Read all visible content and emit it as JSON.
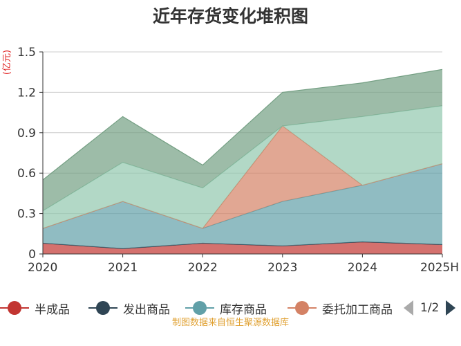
{
  "title": "近年存货变化堆积图",
  "ylabel": "(亿元)",
  "source": "制图数据来自恒生聚源数据库",
  "legend_page": "1/2",
  "chart_data": {
    "type": "area",
    "stacked": true,
    "categories": [
      "2020",
      "2021",
      "2022",
      "2023",
      "2024",
      "2025H"
    ],
    "ylim": [
      0,
      1.5
    ],
    "yticks": [
      "0",
      "0.3",
      "0.6",
      "0.9",
      "1.2",
      "1.5"
    ],
    "grid": true,
    "legend_position": "bottom",
    "series": [
      {
        "name": "半成品",
        "color": "#c23531",
        "values": [
          0.08,
          0.04,
          0.08,
          0.06,
          0.09,
          0.07
        ]
      },
      {
        "name": "发出商品",
        "color": "#2f4554",
        "values": [
          0.0,
          0.0,
          0.0,
          0.0,
          0.0,
          0.0
        ]
      },
      {
        "name": "库存商品",
        "color": "#61a0a8",
        "values": [
          0.11,
          0.35,
          0.11,
          0.33,
          0.42,
          0.6
        ]
      },
      {
        "name": "委托加工商品",
        "color": "#d48265",
        "values": [
          0.0,
          0.0,
          0.0,
          0.56,
          0.0,
          0.0
        ]
      },
      {
        "name": "",
        "color": "#91c7ae",
        "values": [
          0.13,
          0.29,
          0.3,
          0.0,
          0.51,
          0.43
        ]
      },
      {
        "name": "",
        "color": "#749f83",
        "values": [
          0.23,
          0.34,
          0.17,
          0.25,
          0.25,
          0.27
        ]
      }
    ]
  }
}
